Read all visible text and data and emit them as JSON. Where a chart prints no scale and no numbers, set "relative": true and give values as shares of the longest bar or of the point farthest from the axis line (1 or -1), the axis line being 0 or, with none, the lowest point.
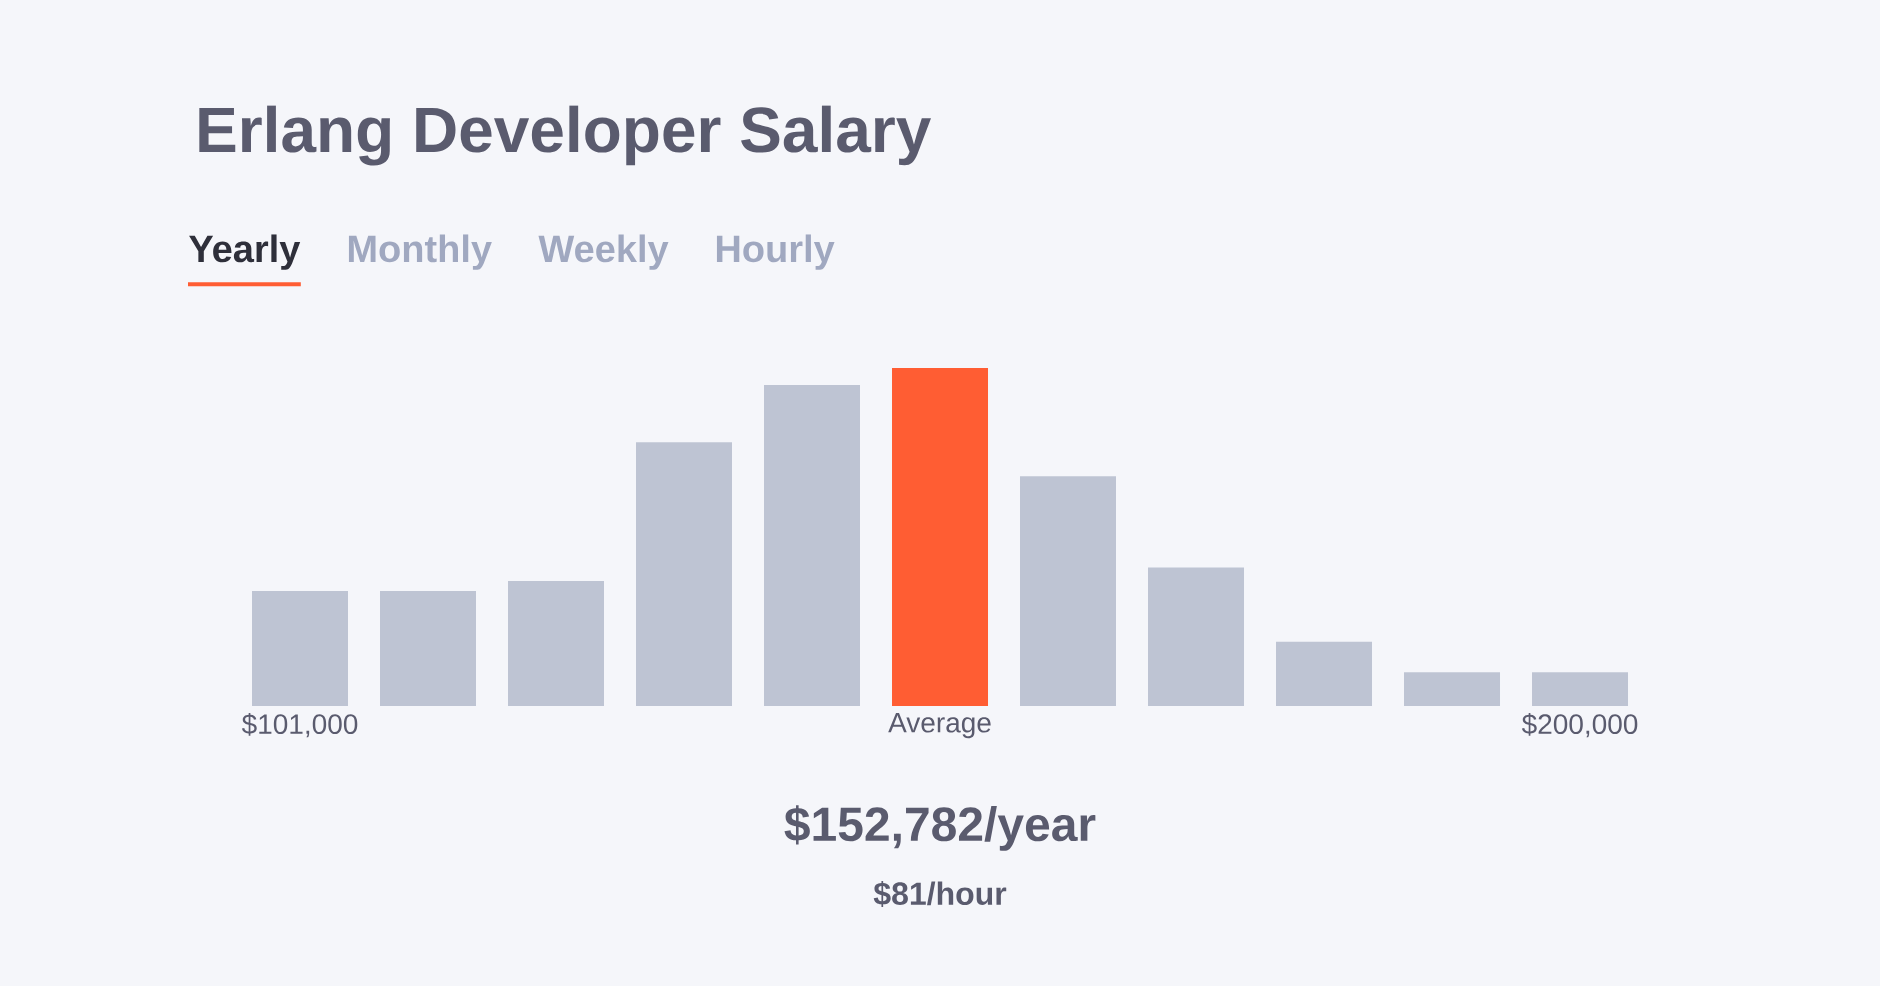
{
  "chart_data": {
    "type": "bar",
    "title": "Erlang Developer Salary",
    "relative": true,
    "categories": [
      "$101,000",
      null,
      null,
      null,
      null,
      "Average",
      null,
      null,
      null,
      null,
      "$200,000"
    ],
    "values": [
      0.34,
      0.34,
      0.37,
      0.78,
      0.95,
      1,
      0.68,
      0.41,
      0.19,
      0.1,
      0.1
    ],
    "colors": [
      "#bec4d3",
      "#bec4d3",
      "#bec4d3",
      "#bec4d3",
      "#bec4d3",
      "#ff5d33",
      "#bec4d3",
      "#bec4d3",
      "#bec4d3",
      "#bec4d3",
      "#bec4d3"
    ],
    "annotations": [
      "Yearly",
      "Monthly",
      "Weekly",
      "Hourly",
      "$152,782/year",
      "$81/hour"
    ]
  }
}
